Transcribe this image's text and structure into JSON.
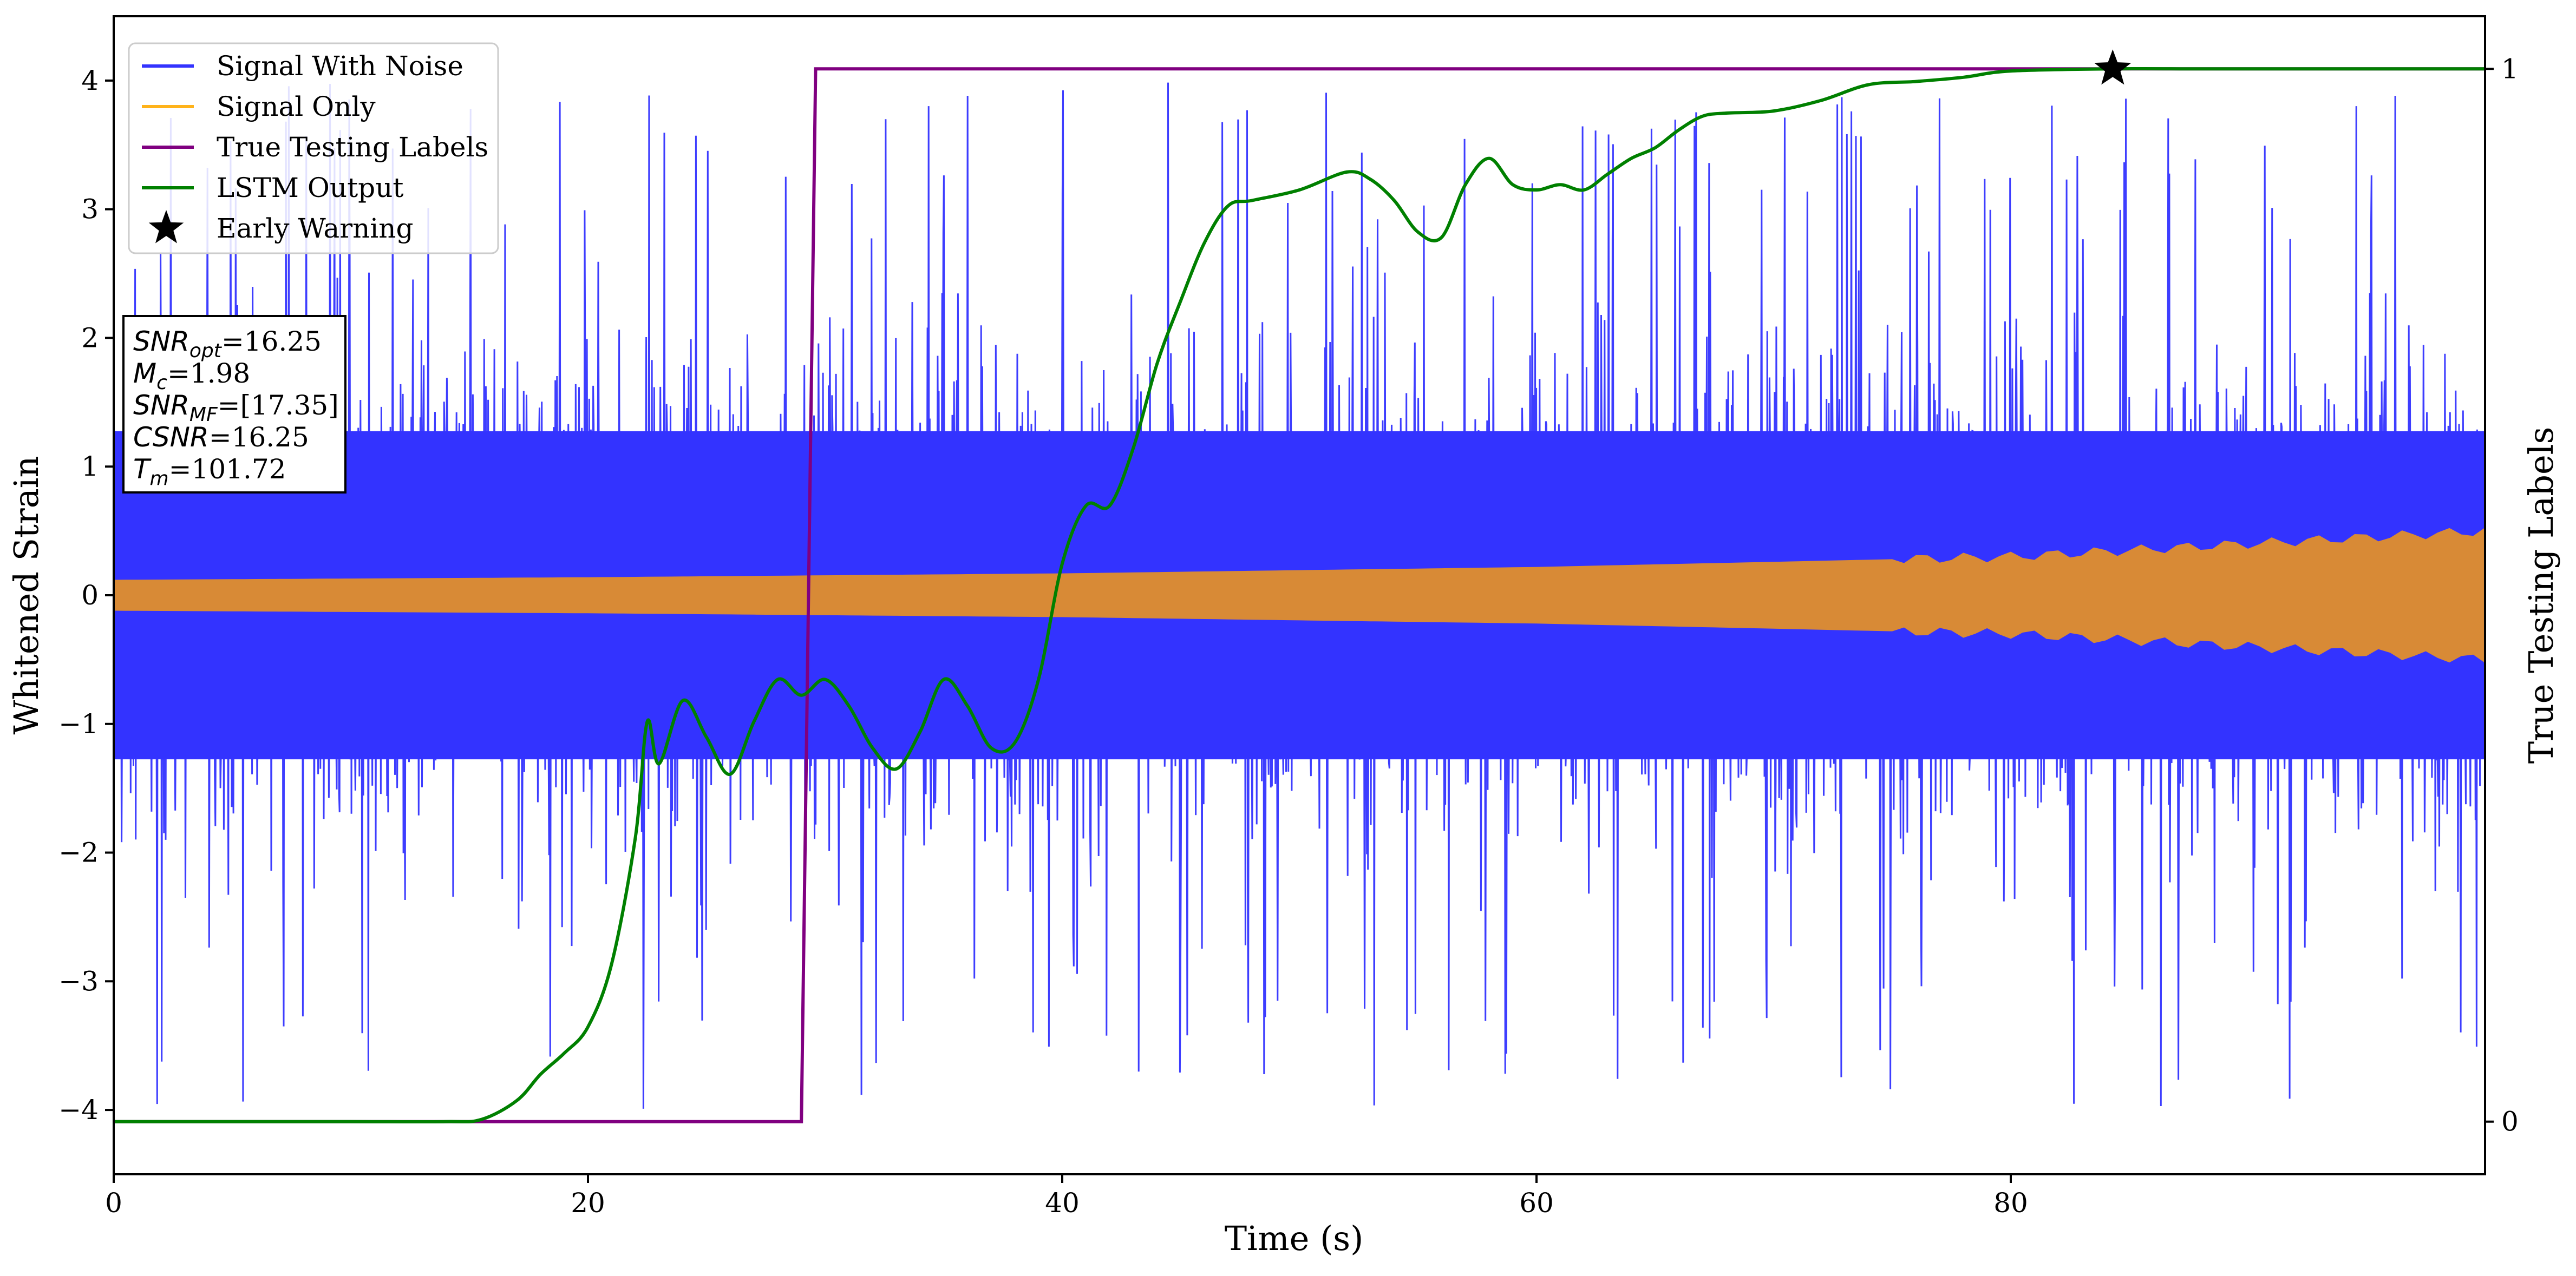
{
  "chart_data": {
    "type": "line",
    "xlabel": "Time (s)",
    "ylabel": "Whitened Strain",
    "y2label": "True Testing Labels",
    "xlim": [
      0,
      100
    ],
    "ylim": [
      -4.5,
      4.5
    ],
    "y2lim": [
      -0.05,
      1.05
    ],
    "x_ticks": [
      0,
      20,
      40,
      60,
      80
    ],
    "x_tick_labels": [
      "0",
      "20",
      "40",
      "60",
      "80"
    ],
    "y_ticks": [
      -4,
      -3,
      -2,
      -1,
      0,
      1,
      2,
      3,
      4
    ],
    "y_tick_labels": [
      "−4",
      "−3",
      "−2",
      "−1",
      "0",
      "1",
      "2",
      "3",
      "4"
    ],
    "y2_ticks": [
      0,
      1
    ],
    "y2_tick_labels": [
      "0",
      "1"
    ],
    "grid": false,
    "legend_position": "top-left",
    "legend": [
      {
        "label": "Signal With Noise",
        "color": "#3333ff",
        "marker": "line"
      },
      {
        "label": "Signal Only",
        "color": "#ffb31a",
        "marker": "line"
      },
      {
        "label": "True Testing Labels",
        "color": "#800080",
        "marker": "line"
      },
      {
        "label": "LSTM Output",
        "color": "#008000",
        "marker": "line"
      },
      {
        "label": "Early Warning",
        "color": "#000000",
        "marker": "star"
      }
    ],
    "annotations": [
      {
        "base": "SNR",
        "sub": "opt",
        "rest": "=16.25"
      },
      {
        "base": "M",
        "sub": "c",
        "rest": "=1.98"
      },
      {
        "base": "SNR",
        "sub": "MF",
        "rest": "=[17.35]"
      },
      {
        "base": "CSNR",
        "sub": "",
        "rest": "=16.25"
      },
      {
        "base": "T",
        "sub": "m",
        "rest": "=101.72"
      }
    ],
    "series": [
      {
        "name": "Signal With Noise",
        "axis": "left",
        "style": "noise_band",
        "color": "#3333ff",
        "x_range": [
          0,
          100
        ],
        "core_amplitude": 1.5,
        "spike_max": 4.0
      },
      {
        "name": "Signal Only",
        "axis": "left",
        "style": "envelope",
        "color": "#ffb31a",
        "x": [
          0,
          20,
          40,
          60,
          80,
          100
        ],
        "envelope": [
          0.12,
          0.14,
          0.17,
          0.22,
          0.3,
          0.5
        ]
      },
      {
        "name": "True Testing Labels",
        "axis": "right",
        "color": "#800080",
        "x": [
          0,
          29.0,
          29.6,
          100
        ],
        "y": [
          0,
          0,
          1,
          1
        ]
      },
      {
        "name": "LSTM Output",
        "axis": "right",
        "color": "#008000",
        "x": [
          0,
          5,
          10,
          14,
          15.5,
          17,
          18,
          19,
          20,
          21,
          22,
          22.5,
          23,
          24,
          25,
          26,
          27,
          28,
          29,
          30,
          31,
          32,
          33,
          34,
          35,
          36,
          37,
          38,
          39,
          40,
          41,
          42,
          43,
          44,
          45,
          46,
          47,
          48,
          50,
          52,
          53,
          54,
          55,
          56,
          57,
          58,
          59,
          60,
          61,
          62,
          63,
          64,
          65,
          66,
          67,
          68,
          70,
          72,
          74,
          76,
          78,
          80,
          84.3,
          88,
          92,
          96,
          100
        ],
        "y": [
          0,
          0,
          0,
          0,
          0.002,
          0.02,
          0.045,
          0.065,
          0.09,
          0.15,
          0.27,
          0.38,
          0.34,
          0.4,
          0.365,
          0.33,
          0.38,
          0.42,
          0.405,
          0.42,
          0.395,
          0.355,
          0.335,
          0.37,
          0.42,
          0.395,
          0.355,
          0.36,
          0.42,
          0.53,
          0.585,
          0.585,
          0.64,
          0.72,
          0.78,
          0.835,
          0.87,
          0.875,
          0.885,
          0.902,
          0.895,
          0.875,
          0.845,
          0.84,
          0.89,
          0.915,
          0.89,
          0.885,
          0.89,
          0.885,
          0.9,
          0.915,
          0.925,
          0.942,
          0.955,
          0.958,
          0.96,
          0.97,
          0.985,
          0.988,
          0.992,
          0.998,
          1.0,
          1.0,
          1.0,
          1.0,
          1.0
        ]
      },
      {
        "name": "Early Warning",
        "axis": "right",
        "style": "marker",
        "color": "#000000",
        "x": [
          84.3
        ],
        "y": [
          1.0
        ]
      }
    ]
  }
}
